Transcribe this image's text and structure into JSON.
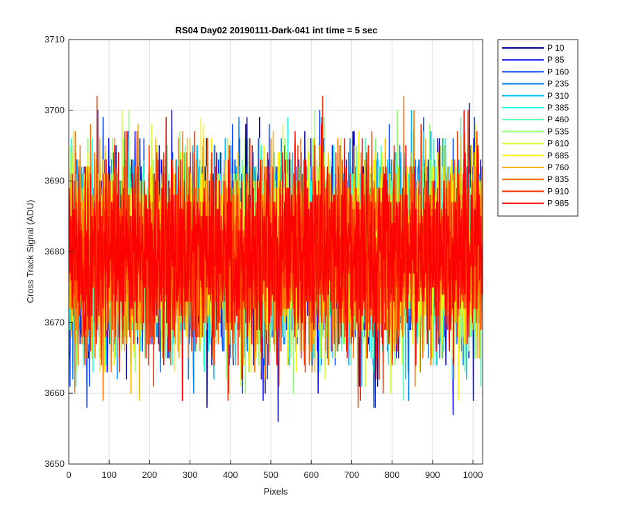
{
  "chart_data": {
    "type": "line",
    "title": "RS04 Day02 20190111-Dark-041 int time = 5 sec",
    "xlabel": "Pixels",
    "ylabel": "Cross Track Signal (ADU)",
    "xlim": [
      0,
      1024
    ],
    "ylim": [
      3650,
      3710
    ],
    "xticks": [
      0,
      100,
      200,
      300,
      400,
      500,
      600,
      700,
      800,
      900,
      1000
    ],
    "yticks": [
      3650,
      3660,
      3670,
      3680,
      3690,
      3700,
      3710
    ],
    "grid": true,
    "legend_position": "outside-top-right",
    "series_points": 1024,
    "series_mean": 3680,
    "series": [
      {
        "name": "P 10",
        "color": "#00009f"
      },
      {
        "name": "P 85",
        "color": "#0000ff"
      },
      {
        "name": "P 160",
        "color": "#0040ff"
      },
      {
        "name": "P 235",
        "color": "#0080ff"
      },
      {
        "name": "P 310",
        "color": "#00bfff"
      },
      {
        "name": "P 385",
        "color": "#10ffef"
      },
      {
        "name": "P 460",
        "color": "#50ffaf"
      },
      {
        "name": "P 535",
        "color": "#8fff70"
      },
      {
        "name": "P 610",
        "color": "#cfff30"
      },
      {
        "name": "P 685",
        "color": "#ffef00"
      },
      {
        "name": "P 760",
        "color": "#ffaf00"
      },
      {
        "name": "P 835",
        "color": "#ff7000"
      },
      {
        "name": "P 910",
        "color": "#ff3000"
      },
      {
        "name": "P 985",
        "color": "#ff0000"
      }
    ]
  }
}
